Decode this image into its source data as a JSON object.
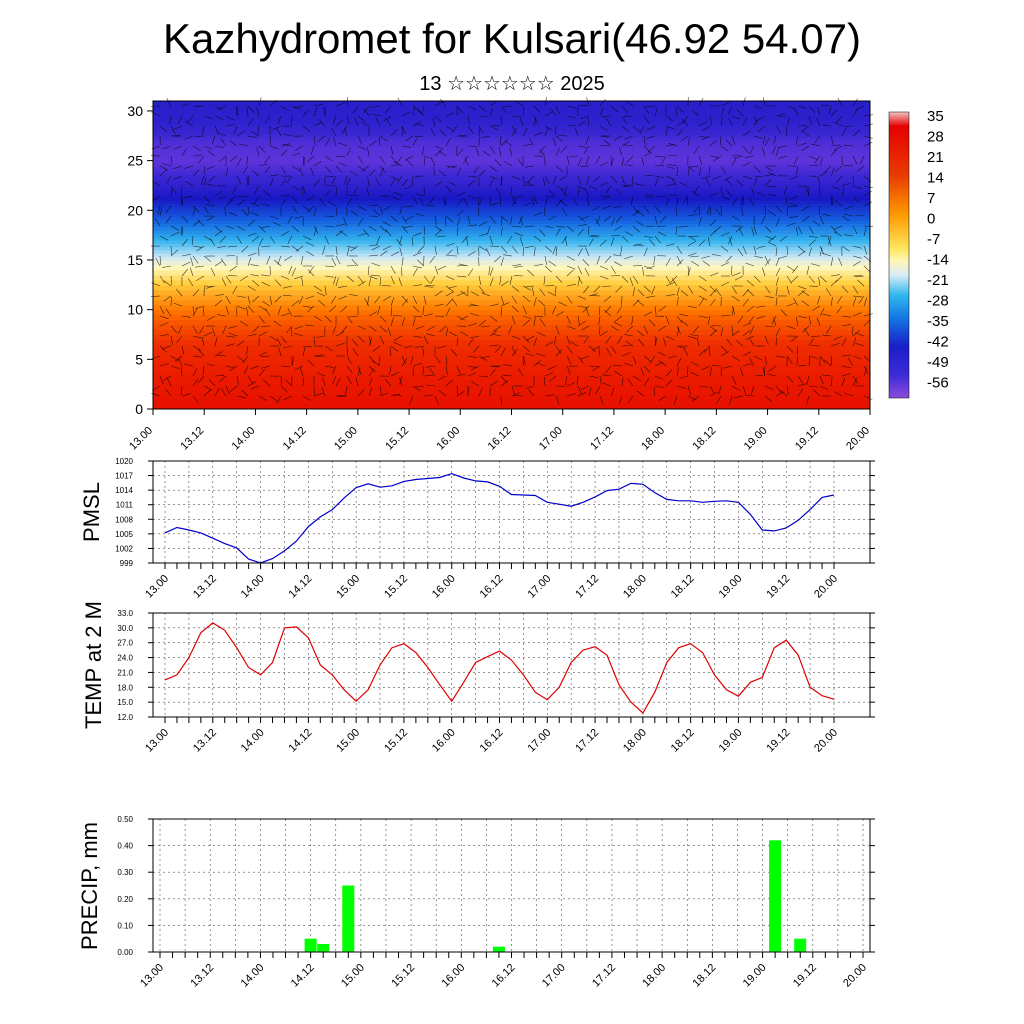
{
  "header": {
    "title": "Kazhydromet for Kulsari(46.92 54.07)",
    "subtitle": "13 ☆☆☆☆☆☆ 2025"
  },
  "colors": {
    "pmsl_line": "#0000cc",
    "temp_line": "#e00000",
    "precip_bar": "#00ff00",
    "wind_barb": "#000000"
  },
  "chart_data": [
    {
      "type": "heatmap",
      "title": "",
      "xlabel": "",
      "ylabel": "",
      "x_ticks": [
        "13.00",
        "13.12",
        "14.00",
        "14.12",
        "15.00",
        "15.12",
        "16.00",
        "16.12",
        "17.00",
        "17.12",
        "18.00",
        "18.12",
        "19.00",
        "19.12",
        "20.00"
      ],
      "y_ticks": [
        "0",
        "5",
        "10",
        "15",
        "20",
        "25",
        "30"
      ],
      "ylim": [
        0,
        31
      ],
      "colorbar_ticks": [
        "35",
        "28",
        "21",
        "14",
        "7",
        "0",
        "-7",
        "-14",
        "-21",
        "-28",
        "-35",
        "-42",
        "-49",
        "-56"
      ],
      "colorbar_range": [
        -63,
        42
      ],
      "overlay": "wind barbs",
      "profile_levels": [
        0,
        3,
        6,
        9,
        12,
        15,
        17,
        19,
        21,
        23,
        25,
        27,
        29,
        31
      ],
      "profile_values": [
        30,
        27,
        22,
        14,
        3,
        -10,
        -22,
        -33,
        -44,
        -55,
        -60,
        -58,
        -52,
        -50
      ]
    },
    {
      "type": "line",
      "ylabel": "PMSL",
      "x_ticks": [
        "13.00",
        "13.12",
        "14.00",
        "14.12",
        "15.00",
        "15.12",
        "16.00",
        "16.12",
        "17.00",
        "17.12",
        "18.00",
        "18.12",
        "19.00",
        "19.12",
        "20.00"
      ],
      "y_ticks": [
        "1020",
        "1017",
        "1014",
        "1011",
        "1008",
        "1005",
        "1002",
        "999"
      ],
      "ylim": [
        999,
        1020
      ],
      "grid": true,
      "x": [
        0,
        3,
        6,
        9,
        12,
        15,
        18,
        21,
        24,
        27,
        30,
        33,
        36,
        39,
        42,
        45,
        48,
        51,
        54,
        57,
        60,
        63,
        66,
        69,
        72,
        75,
        78,
        81,
        84,
        87,
        90,
        93,
        96,
        99,
        102,
        105,
        108,
        111,
        114,
        117,
        120,
        123,
        126,
        129,
        132,
        135,
        138,
        141,
        144,
        147,
        150,
        153,
        156,
        159,
        162,
        165,
        168
      ],
      "values": [
        1005.2,
        1006.3,
        1005.8,
        1005.2,
        1004.1,
        1003.0,
        1002.1,
        999.8,
        999.0,
        999.9,
        1001.5,
        1003.5,
        1006.5,
        1008.5,
        1010.0,
        1012.4,
        1014.5,
        1015.3,
        1014.6,
        1014.9,
        1015.8,
        1016.2,
        1016.4,
        1016.6,
        1017.4,
        1016.5,
        1015.9,
        1015.7,
        1014.8,
        1013.1,
        1013.0,
        1012.9,
        1011.5,
        1011.1,
        1010.7,
        1011.5,
        1012.6,
        1013.9,
        1014.2,
        1015.4,
        1015.2,
        1013.5,
        1012.1,
        1011.8,
        1011.8,
        1011.5,
        1011.7,
        1011.8,
        1011.5,
        1009.0,
        1005.8,
        1005.6,
        1006.2,
        1007.8,
        1010.0,
        1012.5,
        1013.0
      ]
    },
    {
      "type": "line",
      "ylabel": "TEMP at 2 M",
      "x_ticks": [
        "13.00",
        "13.12",
        "14.00",
        "14.12",
        "15.00",
        "15.12",
        "16.00",
        "16.12",
        "17.00",
        "17.12",
        "18.00",
        "18.12",
        "19.00",
        "19.12",
        "20.00"
      ],
      "y_ticks": [
        "33.0",
        "30.0",
        "27.0",
        "24.0",
        "21.0",
        "18.0",
        "15.0",
        "12.0"
      ],
      "ylim": [
        12,
        33
      ],
      "grid": true,
      "x": [
        0,
        3,
        6,
        9,
        12,
        15,
        18,
        21,
        24,
        27,
        30,
        33,
        36,
        39,
        42,
        45,
        48,
        51,
        54,
        57,
        60,
        63,
        66,
        69,
        72,
        75,
        78,
        81,
        84,
        87,
        90,
        93,
        96,
        99,
        102,
        105,
        108,
        111,
        114,
        117,
        120,
        123,
        126,
        129,
        132,
        135,
        138,
        141,
        144,
        147,
        150,
        153,
        156,
        159,
        162,
        165,
        168
      ],
      "values": [
        19.5,
        20.5,
        24.0,
        29.0,
        31.0,
        29.5,
        26.0,
        22.0,
        20.5,
        23.0,
        30.0,
        30.2,
        28.0,
        22.5,
        20.5,
        17.5,
        15.2,
        17.5,
        22.5,
        26.0,
        26.8,
        25.0,
        22.0,
        18.5,
        15.2,
        19.0,
        23.0,
        24.2,
        25.3,
        23.5,
        20.5,
        17.0,
        15.5,
        18.0,
        23.0,
        25.5,
        26.2,
        24.5,
        18.5,
        15.0,
        12.8,
        17.0,
        23.0,
        26.0,
        26.8,
        25.0,
        20.5,
        17.5,
        16.2,
        19.0,
        20.0,
        26.0,
        27.5,
        24.5,
        18.0,
        16.3,
        15.6
      ]
    },
    {
      "type": "bar",
      "ylabel": "PRECIP, mm",
      "x_ticks": [
        "13.00",
        "13.12",
        "14.00",
        "14.12",
        "15.00",
        "15.12",
        "16.00",
        "16.12",
        "17.00",
        "17.12",
        "18.00",
        "18.12",
        "19.00",
        "19.12",
        "20.00"
      ],
      "y_ticks": [
        "0.50",
        "0.40",
        "0.30",
        "0.20",
        "0.10",
        "0.00"
      ],
      "ylim": [
        0,
        0.5
      ],
      "grid": true,
      "x": [
        36,
        39,
        45,
        81,
        147,
        153
      ],
      "values": [
        0.05,
        0.03,
        0.25,
        0.02,
        0.42,
        0.05
      ]
    }
  ]
}
